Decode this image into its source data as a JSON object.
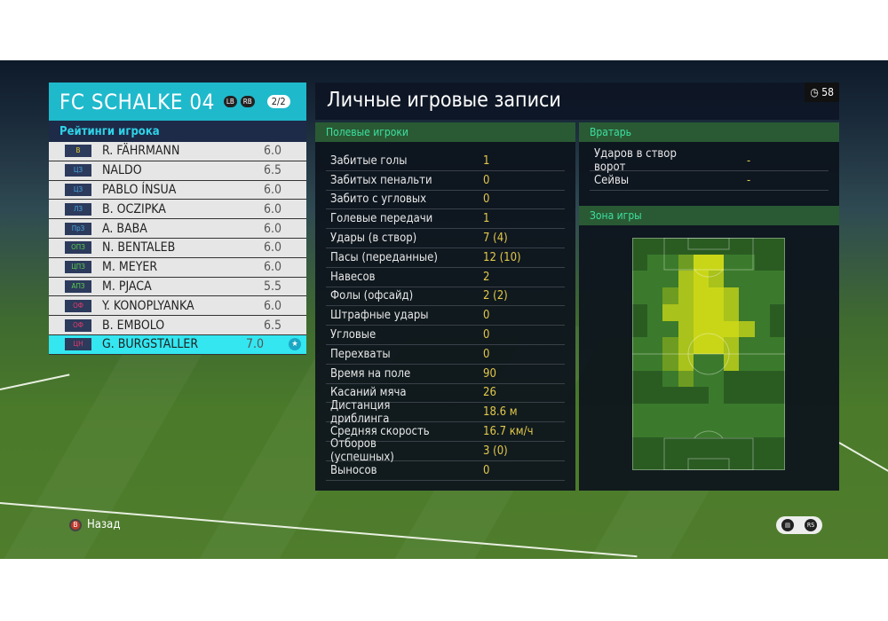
{
  "team": {
    "name": "FC SCHALKE 04",
    "lb": "LB",
    "rb": "RB",
    "page": "2/2",
    "ratings_label": "Рейтинги игрока"
  },
  "players": [
    {
      "pos": "В",
      "pos_color": "#e8d030",
      "name": "R. FÄHRMANN",
      "rating": "6.0"
    },
    {
      "pos": "ЦЗ",
      "pos_color": "#4aa8e0",
      "name": "NALDO",
      "rating": "6.5"
    },
    {
      "pos": "ЦЗ",
      "pos_color": "#4aa8e0",
      "name": "PABLO ÍNSUA",
      "rating": "6.0"
    },
    {
      "pos": "ЛЗ",
      "pos_color": "#4aa8e0",
      "name": "B. OCZIPKA",
      "rating": "6.0"
    },
    {
      "pos": "ПрЗ",
      "pos_color": "#4aa8e0",
      "name": "A. BABA",
      "rating": "6.0"
    },
    {
      "pos": "ОПЗ",
      "pos_color": "#5ad04a",
      "name": "N. BENTALEB",
      "rating": "6.0"
    },
    {
      "pos": "ЦПЗ",
      "pos_color": "#5ad04a",
      "name": "M. MEYER",
      "rating": "6.0"
    },
    {
      "pos": "АПЗ",
      "pos_color": "#5ad04a",
      "name": "M. PJACA",
      "rating": "5.5"
    },
    {
      "pos": "ОФ",
      "pos_color": "#e83a6a",
      "name": "Y. KONOPLYANKA",
      "rating": "6.0"
    },
    {
      "pos": "ОФ",
      "pos_color": "#e83a6a",
      "name": "B. EMBOLO",
      "rating": "6.5"
    },
    {
      "pos": "ЦН",
      "pos_color": "#e83a6a",
      "name": "G. BURGSTALLER",
      "rating": "7.0",
      "selected": true,
      "star": "★"
    }
  ],
  "main": {
    "title": "Личные игровые записи",
    "timer": "58",
    "field_header": "Полевые игроки",
    "gk_header": "Вратарь",
    "zone_header": "Зона игры"
  },
  "field_stats": [
    {
      "label": "Забитые голы",
      "value": "1"
    },
    {
      "label": "Забитых пенальти",
      "value": "0"
    },
    {
      "label": "Забито с угловых",
      "value": "0"
    },
    {
      "label": "Голевые передачи",
      "value": "1"
    },
    {
      "label": "Удары (в створ)",
      "value": "7 (4)"
    },
    {
      "label": "Пасы (переданные)",
      "value": "12 (10)"
    },
    {
      "label": "Навесов",
      "value": "2"
    },
    {
      "label": "Фолы (офсайд)",
      "value": "2 (2)"
    },
    {
      "label": "Штрафные удары",
      "value": "0"
    },
    {
      "label": "Угловые",
      "value": "0"
    },
    {
      "label": "Перехваты",
      "value": "0"
    },
    {
      "label": "Время на поле",
      "value": "90"
    },
    {
      "label": "Касаний мяча",
      "value": "26"
    },
    {
      "label": "Дистанция дриблинга",
      "value": "18.6 м"
    },
    {
      "label": "Средняя скорость",
      "value": "16.7 км/ч"
    },
    {
      "label": "Отборов (успешных)",
      "value": "3 (0)"
    },
    {
      "label": "Выносов",
      "value": "0"
    }
  ],
  "gk_stats": [
    {
      "label": "Ударов в створ ворот",
      "value": "-"
    },
    {
      "label": "Сейвы",
      "value": "-"
    }
  ],
  "heatmap": {
    "colors": [
      "#2a5c22",
      "#3b7a2c",
      "#6e9c22",
      "#a9c21c",
      "#c9d618"
    ],
    "grid": [
      [
        0,
        0,
        0,
        0,
        0,
        0,
        0,
        0,
        0,
        0
      ],
      [
        0,
        1,
        1,
        2,
        4,
        4,
        1,
        1,
        0,
        0
      ],
      [
        1,
        1,
        1,
        3,
        4,
        3,
        1,
        1,
        1,
        1
      ],
      [
        1,
        1,
        2,
        3,
        4,
        4,
        3,
        1,
        1,
        1
      ],
      [
        0,
        1,
        3,
        3,
        4,
        4,
        3,
        1,
        1,
        0
      ],
      [
        0,
        1,
        1,
        3,
        4,
        4,
        4,
        3,
        1,
        0
      ],
      [
        1,
        1,
        2,
        3,
        4,
        4,
        3,
        1,
        1,
        1
      ],
      [
        1,
        1,
        2,
        3,
        1,
        1,
        3,
        1,
        1,
        1
      ],
      [
        0,
        0,
        1,
        2,
        1,
        1,
        0,
        0,
        0,
        0
      ],
      [
        0,
        0,
        0,
        0,
        0,
        1,
        0,
        0,
        0,
        0
      ],
      [
        1,
        1,
        1,
        1,
        1,
        1,
        1,
        1,
        1,
        1
      ],
      [
        1,
        1,
        1,
        1,
        1,
        1,
        1,
        1,
        1,
        1
      ],
      [
        0,
        0,
        0,
        0,
        0,
        0,
        0,
        0,
        0,
        0
      ],
      [
        0,
        0,
        0,
        0,
        0,
        0,
        0,
        0,
        0,
        0
      ]
    ]
  },
  "footer": {
    "back_button": "B",
    "back_label": "Назад",
    "hint1": "▤",
    "hint2": "RS"
  }
}
